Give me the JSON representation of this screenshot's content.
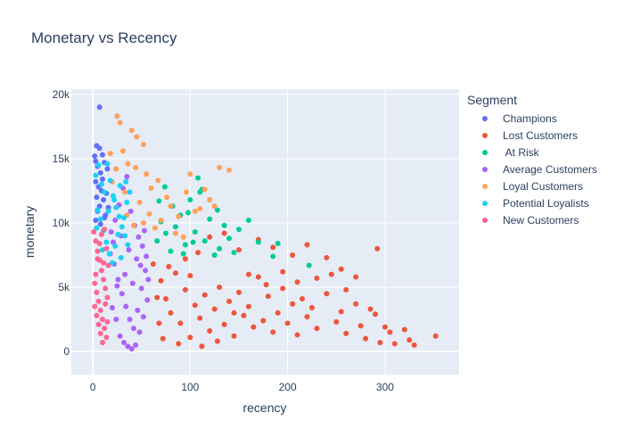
{
  "chart_data": {
    "type": "scatter",
    "title": "Monetary vs Recency",
    "xlabel": "recency",
    "ylabel": "monetary",
    "xlim": [
      -22,
      376
    ],
    "ylim": [
      -1800,
      20400
    ],
    "xticks": [
      0,
      100,
      200,
      300
    ],
    "xtick_labels": [
      "0",
      "100",
      "200",
      "300"
    ],
    "yticks": [
      0,
      5000,
      10000,
      15000,
      20000
    ],
    "ytick_labels": [
      "0",
      "5k",
      "10k",
      "15k",
      "20k"
    ],
    "grid": true,
    "legend_title": "Segment",
    "legend_position": "right",
    "series": [
      {
        "name": "Champions",
        "color": "#636efa",
        "points": [
          [
            7,
            19000
          ],
          [
            4,
            16000
          ],
          [
            7,
            15800
          ],
          [
            10,
            15300
          ],
          [
            3,
            14800
          ],
          [
            5,
            14400
          ],
          [
            12,
            14700
          ],
          [
            8,
            13900
          ],
          [
            3,
            13200
          ],
          [
            6,
            12800
          ],
          [
            9,
            12500
          ],
          [
            4,
            12000
          ],
          [
            11,
            11800
          ],
          [
            7,
            11300
          ],
          [
            5,
            10900
          ],
          [
            13,
            10600
          ],
          [
            3,
            10200
          ],
          [
            8,
            9900
          ],
          [
            14,
            12300
          ],
          [
            10,
            13400
          ],
          [
            16,
            11200
          ],
          [
            12,
            10400
          ],
          [
            2,
            15200
          ],
          [
            15,
            14200
          ]
        ]
      },
      {
        "name": "Lost Customers",
        "color": "#ef553b",
        "points": [
          [
            62,
            6800
          ],
          [
            70,
            5500
          ],
          [
            75,
            4100
          ],
          [
            80,
            3000
          ],
          [
            85,
            6100
          ],
          [
            90,
            2200
          ],
          [
            95,
            4800
          ],
          [
            100,
            5900
          ],
          [
            105,
            3600
          ],
          [
            110,
            2600
          ],
          [
            115,
            4400
          ],
          [
            120,
            1600
          ],
          [
            125,
            3300
          ],
          [
            130,
            5000
          ],
          [
            135,
            2100
          ],
          [
            140,
            3900
          ],
          [
            145,
            1200
          ],
          [
            150,
            4600
          ],
          [
            155,
            2800
          ],
          [
            160,
            3500
          ],
          [
            165,
            1900
          ],
          [
            170,
            5800
          ],
          [
            175,
            2400
          ],
          [
            180,
            4300
          ],
          [
            185,
            1500
          ],
          [
            190,
            3000
          ],
          [
            195,
            4900
          ],
          [
            200,
            2200
          ],
          [
            205,
            3700
          ],
          [
            210,
            1300
          ],
          [
            215,
            4100
          ],
          [
            220,
            2700
          ],
          [
            225,
            3400
          ],
          [
            230,
            1800
          ],
          [
            240,
            4500
          ],
          [
            250,
            2300
          ],
          [
            255,
            3100
          ],
          [
            260,
            1400
          ],
          [
            270,
            3700
          ],
          [
            275,
            2000
          ],
          [
            280,
            1000
          ],
          [
            290,
            2900
          ],
          [
            295,
            700
          ],
          [
            300,
            1900
          ],
          [
            305,
            1500
          ],
          [
            310,
            600
          ],
          [
            320,
            1700
          ],
          [
            325,
            900
          ],
          [
            330,
            500
          ],
          [
            352,
            1200
          ],
          [
            292,
            8000
          ],
          [
            270,
            5800
          ],
          [
            255,
            6400
          ],
          [
            240,
            7300
          ],
          [
            220,
            8300
          ],
          [
            205,
            7500
          ],
          [
            185,
            8100
          ],
          [
            170,
            8700
          ],
          [
            150,
            7900
          ],
          [
            135,
            9200
          ],
          [
            120,
            8900
          ],
          [
            108,
            7700
          ],
          [
            95,
            7200
          ],
          [
            78,
            6600
          ],
          [
            66,
            4200
          ],
          [
            68,
            2200
          ],
          [
            72,
            1000
          ],
          [
            88,
            600
          ],
          [
            100,
            1100
          ],
          [
            112,
            400
          ],
          [
            128,
            800
          ],
          [
            145,
            3000
          ],
          [
            160,
            6000
          ],
          [
            178,
            5200
          ],
          [
            195,
            6200
          ],
          [
            210,
            5400
          ],
          [
            230,
            5700
          ],
          [
            245,
            6000
          ],
          [
            260,
            4800
          ],
          [
            285,
            3300
          ]
        ]
      },
      {
        "name": " At Risk",
        "color": "#00cc96",
        "points": [
          [
            66,
            8600
          ],
          [
            70,
            10100
          ],
          [
            75,
            9200
          ],
          [
            80,
            7800
          ],
          [
            85,
            9700
          ],
          [
            90,
            10600
          ],
          [
            95,
            8300
          ],
          [
            100,
            11800
          ],
          [
            105,
            9300
          ],
          [
            108,
            13500
          ],
          [
            110,
            12400
          ],
          [
            115,
            8600
          ],
          [
            120,
            10300
          ],
          [
            125,
            7500
          ],
          [
            128,
            11000
          ],
          [
            135,
            9800
          ],
          [
            140,
            8800
          ],
          [
            145,
            7700
          ],
          [
            150,
            9500
          ],
          [
            160,
            10200
          ],
          [
            170,
            8500
          ],
          [
            185,
            7400
          ],
          [
            190,
            8400
          ],
          [
            222,
            6700
          ],
          [
            112,
            12600
          ],
          [
            98,
            10800
          ],
          [
            82,
            11300
          ],
          [
            74,
            12800
          ],
          [
            68,
            11700
          ],
          [
            93,
            7600
          ],
          [
            130,
            8000
          ],
          [
            103,
            8500
          ]
        ]
      },
      {
        "name": "Average Customers",
        "color": "#ab63fa",
        "points": [
          [
            18,
            7600
          ],
          [
            22,
            6800
          ],
          [
            26,
            5600
          ],
          [
            30,
            4500
          ],
          [
            34,
            3500
          ],
          [
            38,
            2500
          ],
          [
            42,
            1800
          ],
          [
            46,
            3200
          ],
          [
            50,
            4900
          ],
          [
            54,
            6300
          ],
          [
            20,
            3400
          ],
          [
            24,
            2500
          ],
          [
            28,
            1200
          ],
          [
            32,
            700
          ],
          [
            36,
            400
          ],
          [
            40,
            200
          ],
          [
            44,
            500
          ],
          [
            48,
            1500
          ],
          [
            52,
            2700
          ],
          [
            56,
            4000
          ],
          [
            19,
            9300
          ],
          [
            23,
            10200
          ],
          [
            27,
            11400
          ],
          [
            31,
            12700
          ],
          [
            35,
            13600
          ],
          [
            39,
            10900
          ],
          [
            43,
            9800
          ],
          [
            47,
            8900
          ],
          [
            51,
            8200
          ],
          [
            55,
            7400
          ],
          [
            25,
            5100
          ],
          [
            33,
            6000
          ],
          [
            41,
            5300
          ],
          [
            49,
            6700
          ],
          [
            57,
            5600
          ],
          [
            21,
            8500
          ],
          [
            29,
            9000
          ],
          [
            37,
            7900
          ],
          [
            45,
            7200
          ],
          [
            53,
            9400
          ]
        ]
      },
      {
        "name": "Loyal Customers",
        "color": "#ffa15a",
        "points": [
          [
            25,
            18300
          ],
          [
            28,
            17800
          ],
          [
            40,
            17200
          ],
          [
            45,
            16700
          ],
          [
            52,
            16100
          ],
          [
            18,
            15400
          ],
          [
            24,
            14200
          ],
          [
            31,
            15600
          ],
          [
            36,
            14600
          ],
          [
            44,
            14300
          ],
          [
            55,
            13800
          ],
          [
            60,
            12700
          ],
          [
            67,
            13300
          ],
          [
            76,
            12000
          ],
          [
            80,
            11300
          ],
          [
            88,
            10500
          ],
          [
            96,
            12400
          ],
          [
            100,
            13800
          ],
          [
            110,
            11100
          ],
          [
            120,
            11800
          ],
          [
            130,
            14300
          ],
          [
            140,
            14100
          ],
          [
            20,
            13200
          ],
          [
            33,
            12400
          ],
          [
            48,
            11600
          ],
          [
            58,
            10700
          ],
          [
            64,
            9600
          ],
          [
            70,
            10200
          ],
          [
            85,
            9200
          ],
          [
            93,
            8900
          ],
          [
            105,
            10900
          ],
          [
            115,
            12600
          ],
          [
            125,
            11300
          ],
          [
            35,
            10600
          ],
          [
            42,
            9800
          ],
          [
            52,
            10000
          ]
        ]
      },
      {
        "name": "Potential Loyalists",
        "color": "#19d3f3",
        "points": [
          [
            3,
            13700
          ],
          [
            6,
            14500
          ],
          [
            9,
            13000
          ],
          [
            12,
            12400
          ],
          [
            15,
            14600
          ],
          [
            18,
            13300
          ],
          [
            21,
            12100
          ],
          [
            24,
            11200
          ],
          [
            27,
            10500
          ],
          [
            30,
            9700
          ],
          [
            33,
            9000
          ],
          [
            36,
            8300
          ],
          [
            5,
            11000
          ],
          [
            8,
            10300
          ],
          [
            11,
            9400
          ],
          [
            14,
            8500
          ],
          [
            17,
            7600
          ],
          [
            20,
            6900
          ],
          [
            23,
            8200
          ],
          [
            26,
            9100
          ],
          [
            29,
            7300
          ],
          [
            32,
            10400
          ],
          [
            35,
            11600
          ],
          [
            38,
            12400
          ],
          [
            4,
            9600
          ],
          [
            10,
            7900
          ],
          [
            16,
            10900
          ],
          [
            22,
            11800
          ],
          [
            28,
            12900
          ],
          [
            34,
            13200
          ]
        ]
      },
      {
        "name": "New Customers",
        "color": "#ff6692",
        "points": [
          [
            1,
            9300
          ],
          [
            3,
            8600
          ],
          [
            5,
            7800
          ],
          [
            7,
            7100
          ],
          [
            9,
            6300
          ],
          [
            11,
            5600
          ],
          [
            13,
            4900
          ],
          [
            15,
            4200
          ],
          [
            2,
            3500
          ],
          [
            4,
            2800
          ],
          [
            6,
            2100
          ],
          [
            8,
            1400
          ],
          [
            10,
            700
          ],
          [
            12,
            9500
          ],
          [
            14,
            8000
          ],
          [
            16,
            6700
          ],
          [
            2,
            5300
          ],
          [
            4,
            4600
          ],
          [
            6,
            3900
          ],
          [
            8,
            3200
          ],
          [
            10,
            2500
          ],
          [
            12,
            1800
          ],
          [
            14,
            1100
          ],
          [
            3,
            6000
          ],
          [
            5,
            7200
          ],
          [
            7,
            8400
          ],
          [
            9,
            9100
          ],
          [
            11,
            6900
          ],
          [
            13,
            3700
          ],
          [
            15,
            2300
          ]
        ]
      }
    ]
  }
}
